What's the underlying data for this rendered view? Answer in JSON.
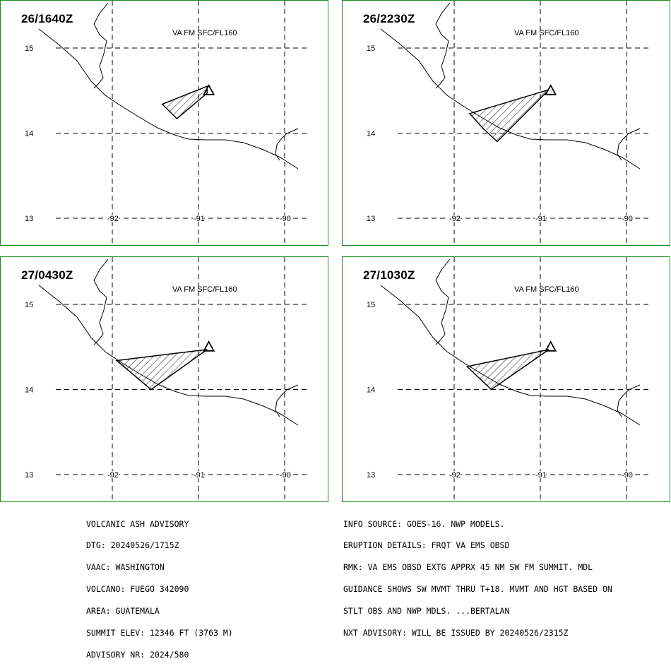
{
  "panels": [
    {
      "time": "26/1640Z",
      "level": "VA FM SFC/FL160",
      "ash_polygon": [
        [
          -91.42,
          14.34
        ],
        [
          -90.9,
          14.55
        ],
        [
          -90.9,
          14.47
        ],
        [
          -91.25,
          14.17
        ]
      ]
    },
    {
      "time": "26/2230Z",
      "level": "VA FM SFC/FL160",
      "ash_polygon": [
        [
          -91.82,
          14.23
        ],
        [
          -90.9,
          14.51
        ],
        [
          -91.5,
          13.9
        ],
        [
          -91.66,
          14.05
        ]
      ]
    },
    {
      "time": "27/0430Z",
      "level": "VA FM SFC/FL160",
      "ash_polygon": [
        [
          -91.95,
          14.34
        ],
        [
          -90.9,
          14.47
        ],
        [
          -91.55,
          14.0
        ]
      ]
    },
    {
      "time": "27/1030Z",
      "level": "VA FM SFC/FL160",
      "ash_polygon": [
        [
          -91.85,
          14.27
        ],
        [
          -90.9,
          14.47
        ],
        [
          -91.57,
          14.0
        ]
      ]
    }
  ],
  "map": {
    "lat_labels": [
      "15",
      "14",
      "13"
    ],
    "lat_values": [
      15,
      14,
      13
    ],
    "lon_labels": [
      "-92",
      "-91",
      "-90"
    ],
    "lon_values": [
      -92,
      -91,
      -90
    ],
    "volcano": [
      -90.88,
      14.47
    ],
    "colors": {
      "frame": "#1a8a1a",
      "lines": "#000000"
    }
  },
  "advisory_left": [
    "VOLCANIC ASH ADVISORY",
    "DTG: 20240526/1715Z",
    "VAAC: WASHINGTON",
    "VOLCANO: FUEGO 342090",
    "AREA: GUATEMALA",
    "SUMMIT ELEV: 12346 FT (3763 M)",
    "ADVISORY NR: 2024/580"
  ],
  "advisory_right": [
    "INFO SOURCE: GOES-16. NWP MODELS.",
    "ERUPTION DETAILS: FRQT VA EMS OBSD",
    "RMK: VA EMS OBSD EXTG APPRX 45 NM SW FM SUMMIT. MDL",
    "GUIDANCE SHOWS SW MVMT THRU T+18. MVMT AND HGT BASED ON",
    "STLT OBS AND NWP MDLS. ...BERTALAN",
    "NXT ADVISORY: WILL BE ISSUED BY 20240526/2315Z"
  ]
}
